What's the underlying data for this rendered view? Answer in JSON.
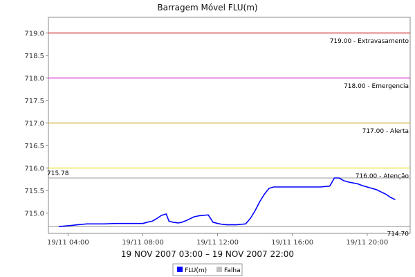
{
  "chart_data": {
    "type": "line",
    "title": "Barragem Móvel FLU(m)",
    "subtitle": "19 NOV 2007 03:00 – 19 NOV 2007 22:00",
    "xlabel": "",
    "ylabel": "",
    "ylim": [
      714.55,
      719.35
    ],
    "xlim_hours": [
      2.95,
      22.3
    ],
    "yticks": [
      715.0,
      715.5,
      716.0,
      716.5,
      717.0,
      717.5,
      718.0,
      718.5,
      719.0
    ],
    "ytick_labels": [
      "715.0",
      "715.5",
      "716.0",
      "716.5",
      "717.0",
      "717.5",
      "718.0",
      "718.5",
      "719.0"
    ],
    "xticks_hours": [
      4,
      8,
      12,
      16,
      20
    ],
    "xtick_labels": [
      "19/11 04:00",
      "19/11 08:00",
      "19/11 12:00",
      "19/11 16:00",
      "19/11 20:00"
    ],
    "grid": false,
    "legend_position": "bottom-center",
    "series": [
      {
        "name": "FLU(m)",
        "color": "#0000ff",
        "x": [
          3.5,
          3.75,
          4.0,
          4.25,
          4.5,
          4.75,
          5.0,
          5.5,
          6.0,
          6.5,
          7.0,
          7.5,
          8.0,
          8.25,
          8.5,
          8.75,
          9.0,
          9.25,
          9.4,
          9.6,
          9.9,
          10.1,
          10.3,
          10.5,
          10.75,
          11.0,
          11.25,
          11.5,
          11.75,
          12.0,
          12.25,
          12.5,
          12.75,
          13.0,
          13.25,
          13.5,
          13.75,
          14.0,
          14.25,
          14.5,
          14.75,
          15.0,
          15.25,
          15.5,
          16.0,
          16.5,
          17.0,
          17.5,
          18.0,
          18.25,
          18.5,
          18.75,
          19.0,
          19.25,
          19.5,
          19.75,
          20.0,
          20.25,
          20.5,
          20.75,
          21.0,
          21.25,
          21.5
        ],
        "values": [
          714.7,
          714.71,
          714.72,
          714.73,
          714.74,
          714.75,
          714.76,
          714.76,
          714.76,
          714.77,
          714.77,
          714.77,
          714.77,
          714.8,
          714.82,
          714.88,
          714.95,
          714.98,
          714.82,
          714.8,
          714.78,
          714.8,
          714.83,
          714.87,
          714.92,
          714.94,
          714.95,
          714.96,
          714.8,
          714.77,
          714.75,
          714.74,
          714.74,
          714.74,
          714.75,
          714.76,
          714.88,
          715.05,
          715.25,
          715.42,
          715.55,
          715.58,
          715.58,
          715.58,
          715.58,
          715.58,
          715.58,
          715.58,
          715.6,
          715.78,
          715.78,
          715.72,
          715.69,
          715.67,
          715.65,
          715.61,
          715.58,
          715.55,
          715.52,
          715.47,
          715.42,
          715.35,
          715.3
        ]
      },
      {
        "name": "Falha",
        "color": "#c0c0c0",
        "x": [],
        "values": []
      }
    ],
    "markers": [
      {
        "value": 719.0,
        "label": "719.00 - Extravasamento",
        "color": "#cc0000"
      },
      {
        "value": 718.0,
        "label": "718.00 - Emergencia",
        "color": "#cc00cc"
      },
      {
        "value": 717.0,
        "label": "717.00 - Alerta",
        "color": "#c8a000"
      },
      {
        "value": 716.0,
        "label": "716.00 - Atenção",
        "color": "#e0e000"
      },
      {
        "value": 715.78,
        "label": "715.78",
        "color": "#999999",
        "label_side": "left"
      },
      {
        "value": 714.7,
        "label": "714.70",
        "color": "#999999",
        "label_side": "right-below"
      }
    ]
  }
}
